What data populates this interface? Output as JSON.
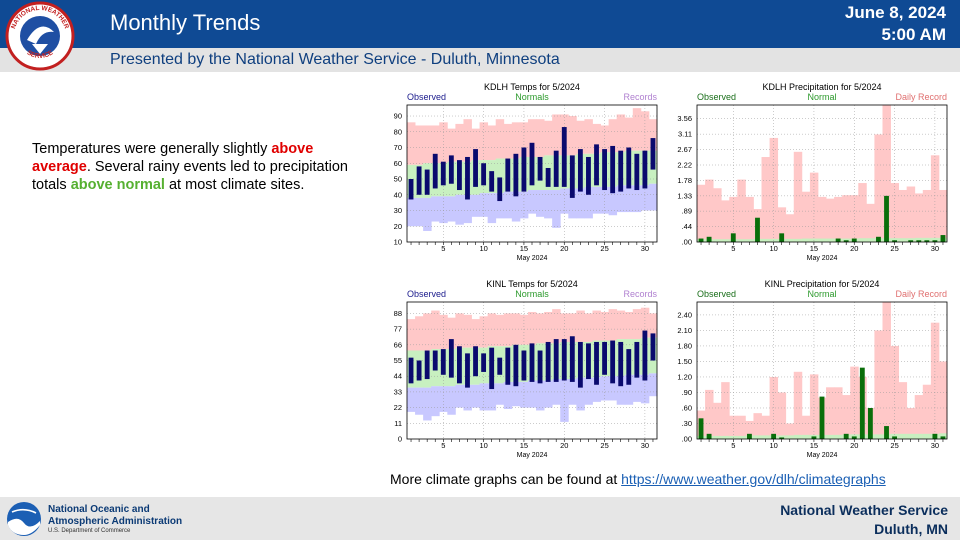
{
  "header": {
    "title": "Monthly Trends",
    "date_line1": "June 8, 2024",
    "date_line2": "5:00 AM",
    "subtitle": "Presented by the National Weather Service - Duluth, Minnesota",
    "logo_text": "NATIONAL WEATHER SERVICE"
  },
  "summary": {
    "part1": "Temperatures were generally slightly ",
    "above_avg": "above average",
    "part2": ". Several rainy events led to precipitation totals ",
    "above_normal": "above normal",
    "part3": " at most climate sites."
  },
  "more_link": {
    "prefix": "More climate graphs can be found at ",
    "url_text": "https://www.weather.gov/dlh/climategraphs"
  },
  "footer": {
    "noaa_name": "National Oceanic and\nAtmospheric Administration",
    "noaa_dept": "U.S. Department of Commerce",
    "nws_line1": "National Weather Service",
    "nws_line2": "Duluth, MN"
  },
  "colors": {
    "header_bg": "#0f4a94",
    "record_band": "#ffc8c8",
    "normal_band": "#c8f0c0",
    "low_normal_band": "#c8c8ff",
    "observed_bar": "#0a0a6e",
    "precip_bar": "#0a6e0a",
    "legend_observed": "#1a1a8c",
    "legend_normals": "#2c9a2c",
    "legend_records": "#b080d0",
    "legend_record_precip": "#e07070",
    "text_red": "#e00000",
    "text_green": "#56b031"
  },
  "chart_data": [
    {
      "type": "bar",
      "kind": "temp",
      "title": "KDLH Temps for 5/2024",
      "legend": [
        "Observed",
        "Normals",
        "Records"
      ],
      "xlabel": "May 2024",
      "x_ticks": [
        5,
        10,
        15,
        20,
        25,
        30
      ],
      "y_ticks": [
        "10",
        "20",
        "30",
        "40",
        "50",
        "60",
        "70",
        "80",
        "90"
      ],
      "ylim": [
        10,
        97
      ],
      "days": [
        1,
        2,
        3,
        4,
        5,
        6,
        7,
        8,
        9,
        10,
        11,
        12,
        13,
        14,
        15,
        16,
        17,
        18,
        19,
        20,
        21,
        22,
        23,
        24,
        25,
        26,
        27,
        28,
        29,
        30,
        31
      ],
      "observed_high": [
        50,
        58,
        56,
        66,
        61,
        65,
        62,
        64,
        69,
        60,
        55,
        51,
        63,
        66,
        70,
        73,
        64,
        57,
        68,
        83,
        65,
        69,
        64,
        72,
        69,
        71,
        68,
        70,
        66,
        68,
        76
      ],
      "observed_low": [
        37,
        40,
        40,
        44,
        46,
        47,
        43,
        37,
        45,
        46,
        42,
        36,
        42,
        39,
        42,
        46,
        49,
        45,
        45,
        45,
        38,
        42,
        40,
        46,
        43,
        41,
        42,
        44,
        43,
        44,
        56
      ],
      "normal_high": [
        59,
        59,
        60,
        60,
        60,
        61,
        61,
        61,
        62,
        62,
        62,
        63,
        63,
        63,
        64,
        64,
        64,
        65,
        65,
        65,
        65,
        66,
        66,
        66,
        67,
        67,
        67,
        68,
        68,
        68,
        68
      ],
      "normal_low": [
        38,
        38,
        38,
        39,
        39,
        39,
        40,
        40,
        40,
        41,
        41,
        41,
        42,
        42,
        42,
        43,
        43,
        43,
        43,
        44,
        44,
        44,
        45,
        45,
        45,
        45,
        46,
        46,
        46,
        46,
        47
      ],
      "record_high": [
        86,
        84,
        84,
        84,
        86,
        82,
        85,
        88,
        82,
        86,
        84,
        88,
        85,
        86,
        86,
        88,
        88,
        87,
        91,
        91,
        90,
        87,
        88,
        85,
        84,
        88,
        91,
        89,
        95,
        93,
        88
      ],
      "record_low": [
        20,
        20,
        17,
        23,
        22,
        23,
        21,
        22,
        26,
        26,
        22,
        25,
        25,
        23,
        25,
        28,
        26,
        25,
        19,
        28,
        25,
        25,
        25,
        28,
        28,
        27,
        29,
        29,
        29,
        30,
        30
      ]
    },
    {
      "type": "bar",
      "kind": "precip",
      "title": "KDLH Precipitation for 5/2024",
      "legend": [
        "Observed",
        "Normal",
        "Daily Record"
      ],
      "xlabel": "May 2024",
      "x_ticks": [
        5,
        10,
        15,
        20,
        25,
        30
      ],
      "y_ticks": [
        ".00",
        ".44",
        ".89",
        "1.33",
        "1.78",
        "2.22",
        "2.67",
        "3.11",
        "3.56"
      ],
      "ylim": [
        0,
        3.95
      ],
      "days": [
        1,
        2,
        3,
        4,
        5,
        6,
        7,
        8,
        9,
        10,
        11,
        12,
        13,
        14,
        15,
        16,
        17,
        18,
        19,
        20,
        21,
        22,
        23,
        24,
        25,
        26,
        27,
        28,
        29,
        30,
        31
      ],
      "observed": [
        0.1,
        0.15,
        0.0,
        0.0,
        0.25,
        0.0,
        0.0,
        0.7,
        0.0,
        0.0,
        0.25,
        0.0,
        0.0,
        0.0,
        0.0,
        0.0,
        0.0,
        0.1,
        0.05,
        0.1,
        0.0,
        0.0,
        0.15,
        1.33,
        0.05,
        0.0,
        0.05,
        0.05,
        0.05,
        0.05,
        0.2
      ],
      "normal": [
        0.08,
        0.08,
        0.08,
        0.08,
        0.08,
        0.08,
        0.08,
        0.09,
        0.09,
        0.09,
        0.09,
        0.09,
        0.09,
        0.1,
        0.1,
        0.1,
        0.1,
        0.1,
        0.1,
        0.1,
        0.11,
        0.11,
        0.11,
        0.11,
        0.11,
        0.11,
        0.11,
        0.12,
        0.12,
        0.12,
        0.12
      ],
      "record": [
        1.65,
        1.8,
        1.55,
        1.2,
        1.3,
        1.8,
        1.3,
        0.95,
        2.45,
        3.0,
        1.0,
        0.8,
        2.6,
        1.45,
        2.0,
        1.3,
        1.25,
        1.3,
        1.35,
        1.35,
        1.7,
        1.1,
        3.1,
        4.0,
        1.7,
        1.5,
        1.6,
        1.4,
        1.5,
        2.5,
        1.5
      ]
    },
    {
      "type": "bar",
      "kind": "temp",
      "title": "KINL Temps for 5/2024",
      "legend": [
        "Observed",
        "Normals",
        "Records"
      ],
      "xlabel": "May 2024",
      "x_ticks": [
        5,
        10,
        15,
        20,
        25,
        30
      ],
      "y_ticks": [
        "0",
        "11",
        "22",
        "33",
        "44",
        "55",
        "66",
        "77",
        "88"
      ],
      "ylim": [
        0,
        96
      ],
      "days": [
        1,
        2,
        3,
        4,
        5,
        6,
        7,
        8,
        9,
        10,
        11,
        12,
        13,
        14,
        15,
        16,
        17,
        18,
        19,
        20,
        21,
        22,
        23,
        24,
        25,
        26,
        27,
        28,
        29,
        30,
        31
      ],
      "observed_high": [
        57,
        55,
        62,
        62,
        63,
        70,
        65,
        60,
        65,
        60,
        64,
        57,
        64,
        66,
        62,
        67,
        62,
        68,
        70,
        70,
        72,
        68,
        67,
        68,
        68,
        69,
        68,
        63,
        68,
        76,
        74
      ],
      "observed_low": [
        39,
        41,
        42,
        48,
        45,
        43,
        39,
        36,
        44,
        47,
        35,
        45,
        38,
        37,
        41,
        40,
        39,
        40,
        40,
        41,
        40,
        36,
        42,
        38,
        45,
        39,
        37,
        38,
        43,
        41,
        55
      ],
      "normal_high": [
        62,
        62,
        62,
        63,
        63,
        63,
        64,
        64,
        64,
        64,
        65,
        65,
        65,
        66,
        66,
        66,
        67,
        67,
        67,
        68,
        68,
        68,
        68,
        69,
        69,
        69,
        70,
        70,
        70,
        71,
        71
      ],
      "normal_low": [
        36,
        36,
        36,
        37,
        37,
        37,
        38,
        38,
        38,
        39,
        39,
        39,
        40,
        40,
        40,
        41,
        41,
        41,
        42,
        42,
        42,
        43,
        43,
        43,
        44,
        44,
        44,
        45,
        45,
        45,
        46
      ],
      "record_high": [
        84,
        86,
        88,
        90,
        87,
        85,
        88,
        87,
        84,
        86,
        88,
        87,
        88,
        88,
        87,
        89,
        88,
        89,
        91,
        88,
        88,
        90,
        88,
        90,
        89,
        91,
        90,
        89,
        91,
        92,
        88
      ],
      "record_low": [
        19,
        17,
        13,
        16,
        19,
        17,
        22,
        20,
        22,
        20,
        20,
        24,
        21,
        23,
        22,
        22,
        20,
        22,
        24,
        12,
        24,
        20,
        24,
        26,
        27,
        27,
        24,
        24,
        26,
        25,
        30
      ]
    },
    {
      "type": "bar",
      "kind": "precip",
      "title": "KINL Precipitation for 5/2024",
      "legend": [
        "Observed",
        "Normal",
        "Daily Record"
      ],
      "xlabel": "May 2024",
      "x_ticks": [
        5,
        10,
        15,
        20,
        25,
        30
      ],
      "y_ticks": [
        ".00",
        ".30",
        ".60",
        ".90",
        "1.20",
        "1.50",
        "1.80",
        "2.10",
        "2.40"
      ],
      "ylim": [
        0,
        2.65
      ],
      "days": [
        1,
        2,
        3,
        4,
        5,
        6,
        7,
        8,
        9,
        10,
        11,
        12,
        13,
        14,
        15,
        16,
        17,
        18,
        19,
        20,
        21,
        22,
        23,
        24,
        25,
        26,
        27,
        28,
        29,
        30,
        31
      ],
      "observed": [
        0.4,
        0.1,
        0.0,
        0.0,
        0.0,
        0.0,
        0.1,
        0.0,
        0.0,
        0.1,
        0.03,
        0.0,
        0.0,
        0.0,
        0.05,
        0.82,
        0.0,
        0.0,
        0.1,
        0.05,
        1.38,
        0.6,
        0.0,
        0.25,
        0.05,
        0.0,
        0.0,
        0.0,
        0.0,
        0.1,
        0.05
      ],
      "normal": [
        0.06,
        0.06,
        0.06,
        0.06,
        0.06,
        0.06,
        0.07,
        0.07,
        0.07,
        0.07,
        0.07,
        0.07,
        0.08,
        0.08,
        0.08,
        0.08,
        0.08,
        0.08,
        0.09,
        0.09,
        0.09,
        0.09,
        0.09,
        0.09,
        0.1,
        0.1,
        0.1,
        0.1,
        0.1,
        0.1,
        0.11
      ],
      "record": [
        0.55,
        0.95,
        0.7,
        1.1,
        0.45,
        0.45,
        0.35,
        0.5,
        0.45,
        1.2,
        0.9,
        0.3,
        1.3,
        0.45,
        1.25,
        0.8,
        1.0,
        1.0,
        0.85,
        1.4,
        1.2,
        0.6,
        2.1,
        2.7,
        1.8,
        1.1,
        0.6,
        0.85,
        1.05,
        2.25,
        1.5
      ]
    }
  ]
}
